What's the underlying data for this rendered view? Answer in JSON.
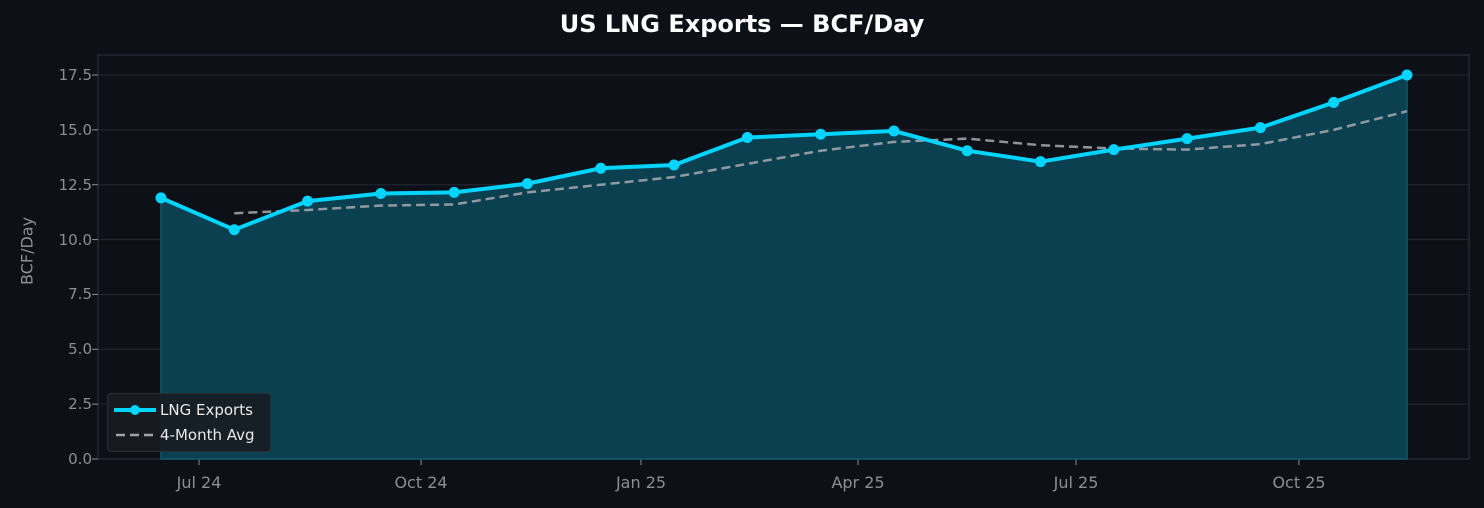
{
  "chart_data": {
    "type": "line",
    "title": "US LNG Exports — BCF/Day",
    "xlabel": "",
    "ylabel": "BCF/Day",
    "ylim": [
      0,
      18.4
    ],
    "yticks": [
      "0.0",
      "2.5",
      "5.0",
      "7.5",
      "10.0",
      "12.5",
      "15.0",
      "17.5"
    ],
    "xticks": [
      "Jul 24",
      "Oct 24",
      "Jan 25",
      "Apr 25",
      "Jul 25",
      "Oct 25"
    ],
    "grid": true,
    "legend_position": "lower left",
    "categories": [
      "Jun 24",
      "Jul 24",
      "Aug 24",
      "Sep 24",
      "Oct 24",
      "Nov 24",
      "Dec 24",
      "Jan 25",
      "Feb 25",
      "Mar 25",
      "Apr 25",
      "May 25",
      "Jun 25",
      "Jul 25",
      "Aug 25",
      "Sep 25",
      "Oct 25",
      "Nov 25"
    ],
    "series": [
      {
        "name": "LNG Exports",
        "style": "solid line with markers, filled area",
        "color": "#00d4ff",
        "values": [
          11.9,
          10.45,
          11.75,
          12.1,
          12.15,
          12.55,
          13.25,
          13.4,
          14.65,
          14.8,
          14.95,
          14.05,
          13.55,
          14.1,
          14.6,
          15.1,
          16.25,
          17.5
        ]
      },
      {
        "name": "4-Month Avg",
        "style": "dashed",
        "color": "#a0a4a8",
        "values": [
          null,
          11.2,
          11.35,
          11.55,
          11.6,
          12.15,
          12.5,
          12.85,
          13.45,
          14.05,
          14.45,
          14.6,
          14.3,
          14.15,
          14.1,
          14.35,
          15.0,
          15.85
        ]
      }
    ]
  },
  "colors": {
    "background": "#0d1017",
    "line": "#00d4ff",
    "fill": "#0a4050",
    "avg": "#a0a4a8",
    "grid": "#242833",
    "text": "#8b8f96"
  },
  "legend": {
    "items": [
      {
        "label": "LNG Exports"
      },
      {
        "label": "4-Month Avg"
      }
    ]
  }
}
